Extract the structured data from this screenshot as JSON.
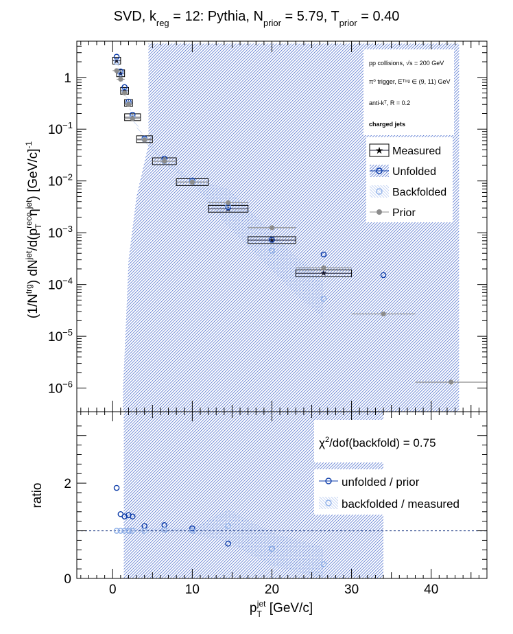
{
  "chart_data": [
    {
      "type": "scatter",
      "panel": "spectrum",
      "title": {
        "main": "SVD, k",
        "sub1": "reg",
        "mid1": " = 12: Pythia, N",
        "sub2": "prior",
        "mid2": " = 5.79, T",
        "sub3": "prior",
        "end": " = 0.40"
      },
      "ylabel": {
        "a": "(1/N",
        "a_sup": "trg",
        "b": ") dN",
        "b_sup": "jet",
        "c": "/d(p",
        "c_sup": "reco",
        "c_sub": "T",
        "d": " η",
        "d_sup": "jet",
        "e": ") [GeV/c]",
        "e_sup": "-1"
      },
      "yscale": "log",
      "xlim": [
        -4.5,
        47.0
      ],
      "ylim": [
        3.5e-07,
        5.0
      ],
      "y_tick_labels": [
        {
          "value": 1,
          "base": "1",
          "exp": ""
        },
        {
          "value": 0.1,
          "base": "10",
          "exp": "−1"
        },
        {
          "value": 0.01,
          "base": "10",
          "exp": "−2"
        },
        {
          "value": 0.001,
          "base": "10",
          "exp": "−3"
        },
        {
          "value": 0.0001,
          "base": "10",
          "exp": "−4"
        },
        {
          "value": 1e-05,
          "base": "10",
          "exp": "−5"
        },
        {
          "value": 1e-06,
          "base": "10",
          "exp": "−6"
        }
      ],
      "annotations": [
        {
          "text": "pp collisions, √s = 200 GeV"
        },
        {
          "text": "π⁰ trigger, Eᵀᵗʳᵍ ∈ (9, 11) GeV"
        },
        {
          "text": "anti-kᵀ, R = 0.2"
        },
        {
          "text": "charged jets"
        }
      ],
      "legend_position": "right",
      "series": [
        {
          "name": "Measured",
          "color": "#1a1a2e",
          "marker": "star",
          "points": [
            {
              "x": 0.5,
              "y": 2.1,
              "xerr": 0.5
            },
            {
              "x": 1.0,
              "y": 1.2,
              "xerr": 0.5
            },
            {
              "x": 1.5,
              "y": 0.55,
              "xerr": 0.5
            },
            {
              "x": 2.0,
              "y": 0.32,
              "xerr": 0.5
            },
            {
              "x": 2.5,
              "y": 0.17,
              "xerr": 1.0
            },
            {
              "x": 4.0,
              "y": 0.064,
              "xerr": 1.0
            },
            {
              "x": 6.5,
              "y": 0.024,
              "xerr": 1.5
            },
            {
              "x": 10.0,
              "y": 0.0095,
              "xerr": 2.0
            },
            {
              "x": 14.5,
              "y": 0.0029,
              "xerr": 2.5
            },
            {
              "x": 20.0,
              "y": 0.00072,
              "xerr": 3.0
            },
            {
              "x": 26.5,
              "y": 0.000165,
              "xerr": 3.5
            }
          ]
        },
        {
          "name": "Unfolded",
          "color": "#0a3aa8",
          "marker": "open-circle",
          "points": [
            {
              "x": 0.5,
              "y": 2.5
            },
            {
              "x": 1.0,
              "y": 1.3
            },
            {
              "x": 1.5,
              "y": 0.65
            },
            {
              "x": 2.0,
              "y": 0.34
            },
            {
              "x": 2.5,
              "y": 0.19
            },
            {
              "x": 4.0,
              "y": 0.066
            },
            {
              "x": 6.5,
              "y": 0.027
            },
            {
              "x": 10.0,
              "y": 0.0102
            },
            {
              "x": 14.5,
              "y": 0.0031
            },
            {
              "x": 20.0,
              "y": 0.00073
            },
            {
              "x": 26.5,
              "y": 0.00038
            },
            {
              "x": 34.0,
              "y": 0.000152
            }
          ]
        },
        {
          "name": "Backfolded",
          "color": "#8fb0e8",
          "marker": "open-circle",
          "points": [
            {
              "x": 0.5,
              "y": 2.0
            },
            {
              "x": 1.0,
              "y": 1.18
            },
            {
              "x": 1.5,
              "y": 0.55
            },
            {
              "x": 2.0,
              "y": 0.31
            },
            {
              "x": 2.5,
              "y": 0.165
            },
            {
              "x": 4.0,
              "y": 0.063
            },
            {
              "x": 6.5,
              "y": 0.024
            },
            {
              "x": 10.0,
              "y": 0.0097
            },
            {
              "x": 14.5,
              "y": 0.0033
            },
            {
              "x": 20.0,
              "y": 0.00045
            },
            {
              "x": 26.5,
              "y": 5.3e-05
            }
          ]
        },
        {
          "name": "Prior",
          "color": "#8c8c8c",
          "marker": "filled-circle",
          "points": [
            {
              "x": 0.5,
              "y": 1.35,
              "xerr": 0.5
            },
            {
              "x": 1.0,
              "y": 0.92,
              "xerr": 0.5
            },
            {
              "x": 1.5,
              "y": 0.5,
              "xerr": 0.5
            },
            {
              "x": 2.0,
              "y": 0.3,
              "xerr": 0.5
            },
            {
              "x": 2.5,
              "y": 0.16,
              "xerr": 1.0
            },
            {
              "x": 4.0,
              "y": 0.062,
              "xerr": 1.0
            },
            {
              "x": 6.5,
              "y": 0.024,
              "xerr": 1.5
            },
            {
              "x": 10.0,
              "y": 0.0095,
              "xerr": 2.0
            },
            {
              "x": 14.5,
              "y": 0.0038,
              "xerr": 2.5
            },
            {
              "x": 20.0,
              "y": 0.00125,
              "xerr": 3.0
            },
            {
              "x": 26.5,
              "y": 0.00021,
              "xerr": 3.5
            },
            {
              "x": 34.0,
              "y": 2.7e-05,
              "xerr": 4.0
            },
            {
              "x": 42.5,
              "y": 1.3e-06,
              "xerr": 4.5
            }
          ]
        }
      ],
      "error_band": {
        "color": "#3a5fc8",
        "pattern": "hatched",
        "x_lower": [
          1.3,
          1.6,
          2.0,
          3.0,
          4.5
        ],
        "y_lower": [
          1e-06,
          1e-05,
          0.0003,
          0.005,
          0.05
        ],
        "x_min_full": 4.5,
        "x_max": 43.5,
        "y_top": 4.5
      }
    },
    {
      "type": "scatter",
      "panel": "ratio",
      "ylabel": "ratio",
      "xlabel": {
        "main": "p",
        "sub": "T",
        "sup": "jet",
        "end": " [GeV/c]"
      },
      "xlim": [
        -4.5,
        47.0
      ],
      "ylim": [
        0,
        3.5
      ],
      "x_ticks": [
        0,
        10,
        20,
        30,
        40
      ],
      "y_ticks": [
        0,
        2
      ],
      "reference_line": 1.0,
      "annotation": {
        "pre": "χ",
        "sup": "2",
        "post": "/dof(backfold) = 0.75"
      },
      "series": [
        {
          "name": "unfolded / prior",
          "color": "#0a3aa8",
          "marker": "open-circle",
          "points": [
            {
              "x": 0.5,
              "y": 1.9
            },
            {
              "x": 1.0,
              "y": 1.35
            },
            {
              "x": 1.5,
              "y": 1.3
            },
            {
              "x": 2.0,
              "y": 1.33
            },
            {
              "x": 2.5,
              "y": 1.3
            },
            {
              "x": 4.0,
              "y": 1.1
            },
            {
              "x": 6.5,
              "y": 1.12
            },
            {
              "x": 10.0,
              "y": 1.05
            },
            {
              "x": 14.5,
              "y": 0.73
            },
            {
              "x": 20.0,
              "y": 0.62
            }
          ]
        },
        {
          "name": "backfolded / measured",
          "color": "#8fb0e8",
          "marker": "open-circle",
          "points": [
            {
              "x": 0.5,
              "y": 1.0
            },
            {
              "x": 1.0,
              "y": 1.0
            },
            {
              "x": 1.5,
              "y": 1.0
            },
            {
              "x": 2.0,
              "y": 1.0
            },
            {
              "x": 2.5,
              "y": 1.0
            },
            {
              "x": 4.0,
              "y": 1.0
            },
            {
              "x": 6.5,
              "y": 1.02
            },
            {
              "x": 10.0,
              "y": 1.0
            },
            {
              "x": 14.5,
              "y": 1.1
            },
            {
              "x": 20.0,
              "y": 0.62
            },
            {
              "x": 26.5,
              "y": 0.3
            }
          ]
        }
      ],
      "error_band": {
        "color": "#3a5fc8",
        "pattern": "hatched",
        "x_min": 1.4,
        "x_max": 34.0,
        "y_min": 0.0,
        "y_max": 3.5
      }
    }
  ]
}
